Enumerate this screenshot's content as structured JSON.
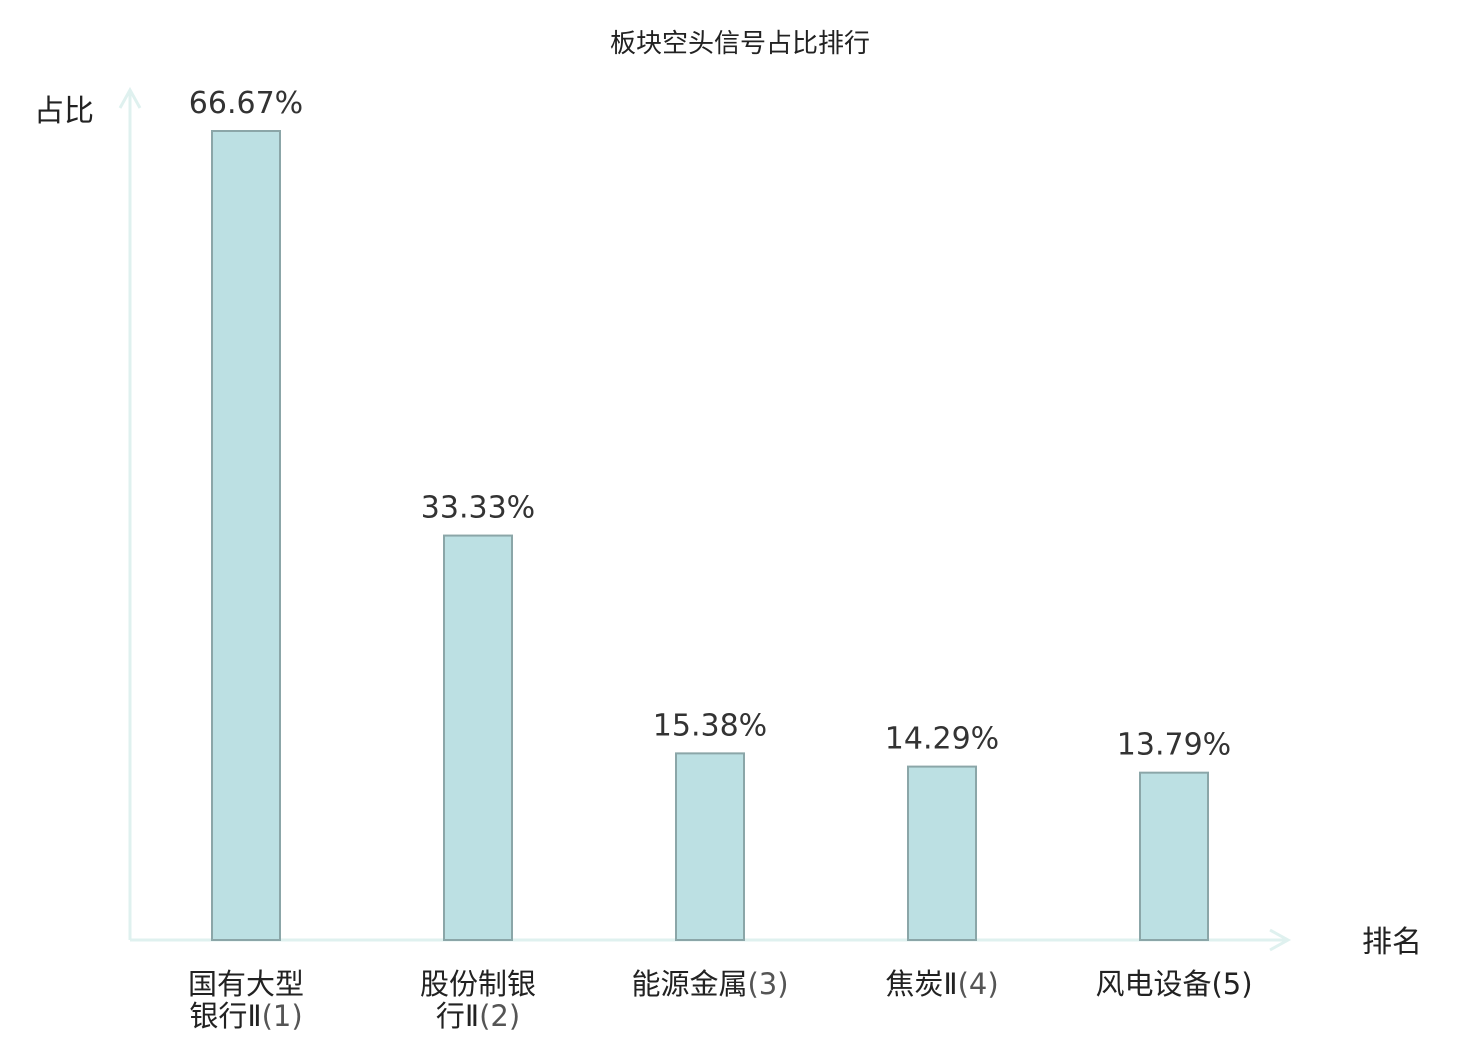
{
  "chart_data": {
    "type": "bar",
    "title": "板块空头信号占比排行",
    "ylabel": "占比",
    "xlabel": "排名",
    "ylim": [
      0,
      70
    ],
    "grid": false,
    "legend": "none",
    "categories": [
      {
        "name_line1": "国有大型",
        "name_line2": "银行Ⅱ",
        "rank": "(1)",
        "highlight": false
      },
      {
        "name_line1": "股份制银",
        "name_line2": "行Ⅱ",
        "rank": "(2)",
        "highlight": false
      },
      {
        "name_line1": "能源金属",
        "name_line2": "",
        "rank": "(3)",
        "highlight": false
      },
      {
        "name_line1": "焦炭Ⅱ",
        "name_line2": "",
        "rank": "(4)",
        "highlight": false
      },
      {
        "name_line1": "风电设备",
        "name_line2": "",
        "rank": "(5)",
        "highlight": true
      }
    ],
    "values": [
      66.67,
      33.33,
      15.38,
      14.29,
      13.79
    ],
    "value_labels": [
      "66.67%",
      "33.33%",
      "15.38%",
      "14.29%",
      "13.79%"
    ],
    "colors": {
      "bar_fill": "#bce0e3",
      "bar_stroke": "#8ba6a8",
      "axis": "#dff1ef",
      "highlight_text": "#e0201c",
      "text": "#222222"
    }
  }
}
